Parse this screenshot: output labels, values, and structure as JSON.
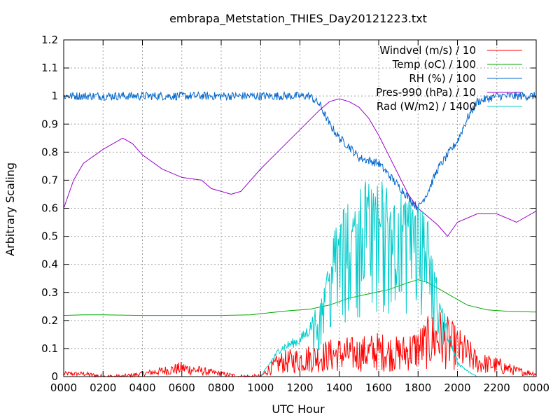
{
  "chart_data": {
    "type": "line",
    "title": "embrapa_Metstation_THIES_Day20121223.txt",
    "xlabel": "UTC Hour",
    "ylabel": "Arbitrary Scaling",
    "xlim": [
      0,
      24
    ],
    "ylim": [
      0,
      1.2
    ],
    "xticks": [
      0,
      2,
      4,
      6,
      8,
      10,
      12,
      14,
      16,
      18,
      20,
      22,
      24
    ],
    "xtick_labels": [
      "0000",
      "0200",
      "0400",
      "0600",
      "0800",
      "1000",
      "1200",
      "1400",
      "1600",
      "1800",
      "2000",
      "2200",
      "0000"
    ],
    "yticks": [
      0,
      0.1,
      0.2,
      0.3,
      0.4,
      0.5,
      0.6,
      0.7,
      0.8,
      0.9,
      1,
      1.1,
      1.2
    ],
    "ytick_labels": [
      "0",
      "0.1",
      "0.2",
      "0.3",
      "0.4",
      "0.5",
      "0.6",
      "0.7",
      "0.8",
      "0.9",
      "1",
      "1.1",
      "1.2"
    ],
    "grid": true,
    "legend_position": "top-right",
    "series": [
      {
        "name": "Windvel (m/s) / 10",
        "color": "#ff0000",
        "noise": true,
        "x": [
          0,
          1,
          2,
          3,
          4,
          5,
          6,
          7,
          8,
          9,
          10,
          10.5,
          11,
          12,
          13,
          14,
          15,
          16,
          17,
          18,
          18.5,
          19,
          19.5,
          20,
          20.5,
          21,
          22,
          23,
          24
        ],
        "y": [
          0.01,
          0.01,
          0.0,
          0.0,
          0.01,
          0.02,
          0.03,
          0.02,
          0.01,
          0.0,
          0.0,
          0.03,
          0.05,
          0.06,
          0.07,
          0.08,
          0.08,
          0.09,
          0.08,
          0.1,
          0.12,
          0.14,
          0.12,
          0.1,
          0.08,
          0.05,
          0.04,
          0.02,
          0.01
        ]
      },
      {
        "name": "Temp (oC) / 100",
        "color": "#00aa00",
        "noise": false,
        "x": [
          0,
          1,
          2,
          4,
          6,
          8,
          9.5,
          10.5,
          11.5,
          12.5,
          13.5,
          14.5,
          15.5,
          16.5,
          17.5,
          18,
          18.5,
          19.5,
          20.5,
          21.5,
          22.5,
          24
        ],
        "y": [
          0.218,
          0.22,
          0.22,
          0.218,
          0.218,
          0.218,
          0.22,
          0.228,
          0.235,
          0.24,
          0.255,
          0.28,
          0.295,
          0.31,
          0.335,
          0.345,
          0.335,
          0.295,
          0.255,
          0.238,
          0.233,
          0.23
        ]
      },
      {
        "name": "RH (%) / 100",
        "color": "#0066cc",
        "noise": true,
        "x": [
          0,
          6,
          12,
          12.5,
          13.0,
          13.5,
          14.0,
          14.5,
          15.0,
          15.5,
          16.0,
          16.5,
          17.0,
          17.5,
          18.0,
          18.5,
          19.0,
          19.5,
          20.0,
          20.5,
          21.0,
          22.0,
          24
        ],
        "y": [
          1.0,
          1.0,
          1.0,
          1.0,
          0.97,
          0.9,
          0.85,
          0.82,
          0.78,
          0.77,
          0.76,
          0.72,
          0.68,
          0.64,
          0.6,
          0.66,
          0.74,
          0.79,
          0.84,
          0.92,
          0.98,
          1.0,
          1.0
        ]
      },
      {
        "name": "Pres-990 (hPa) / 10",
        "color": "#9900cc",
        "noise": false,
        "x": [
          0,
          0.5,
          1,
          2,
          3,
          3.5,
          4,
          5,
          6,
          7,
          7.5,
          8,
          8.5,
          9,
          9.5,
          10,
          11,
          12,
          13,
          13.5,
          14,
          14.5,
          15,
          15.5,
          16,
          16.5,
          17,
          17.5,
          18,
          18.5,
          19,
          19.5,
          20,
          21,
          22,
          23,
          24
        ],
        "y": [
          0.6,
          0.7,
          0.76,
          0.81,
          0.85,
          0.83,
          0.79,
          0.74,
          0.71,
          0.7,
          0.67,
          0.66,
          0.65,
          0.66,
          0.7,
          0.74,
          0.81,
          0.88,
          0.95,
          0.98,
          0.99,
          0.98,
          0.96,
          0.92,
          0.86,
          0.79,
          0.72,
          0.65,
          0.6,
          0.57,
          0.54,
          0.5,
          0.55,
          0.58,
          0.58,
          0.55,
          0.59
        ]
      },
      {
        "name": "Rad (W/m2) / 1400",
        "color": "#00cccc",
        "noise": true,
        "spiky": true,
        "x": [
          0,
          10,
          10.5,
          11,
          12,
          12.5,
          13,
          13.5,
          14,
          14.5,
          15,
          15.5,
          16,
          16.5,
          17,
          17.5,
          18,
          18.5,
          19,
          19.5,
          20,
          20.5,
          21,
          22,
          24
        ],
        "y": [
          0,
          0,
          0.05,
          0.1,
          0.13,
          0.17,
          0.25,
          0.4,
          0.5,
          0.55,
          0.6,
          0.62,
          0.62,
          0.6,
          0.58,
          0.55,
          0.55,
          0.5,
          0.3,
          0.15,
          0.05,
          0.02,
          0.0,
          0.0,
          0.0
        ]
      }
    ]
  }
}
